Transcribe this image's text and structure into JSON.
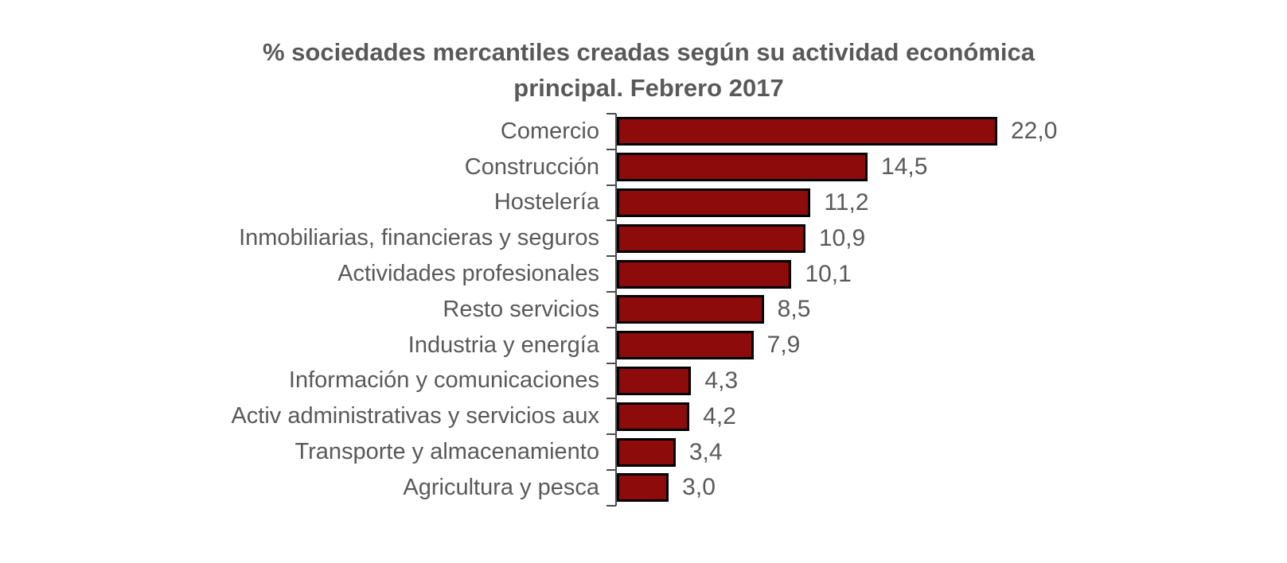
{
  "chart_data": {
    "type": "bar",
    "orientation": "horizontal",
    "title": "% sociedades mercantiles creadas según su actividad económica principal. Febrero 2017",
    "categories": [
      "Comercio",
      "Construcción",
      "Hostelería",
      "Inmobiliarias, financieras y seguros",
      "Actividades profesionales",
      "Resto servicios",
      "Industria y energía",
      "Información y comunicaciones",
      "Activ administrativas y servicios aux",
      "Transporte y almacenamiento",
      "Agricultura y pesca"
    ],
    "values": [
      22.0,
      14.5,
      11.2,
      10.9,
      10.1,
      8.5,
      7.9,
      4.3,
      4.2,
      3.4,
      3.0
    ],
    "value_labels": [
      "22,0",
      "14,5",
      "11,2",
      "10,9",
      "10,1",
      "8,5",
      "7,9",
      "4,3",
      "4,2",
      "3,4",
      "3,0"
    ],
    "xlim": [
      0,
      22
    ],
    "grid": false,
    "legend": "none",
    "decimal_separator": ",",
    "colors": {
      "bar_fill": "#8E0B0B",
      "bar_border": "#000000",
      "text": "#595959",
      "axis": "#4d4d4d",
      "background": "#ffffff"
    }
  }
}
